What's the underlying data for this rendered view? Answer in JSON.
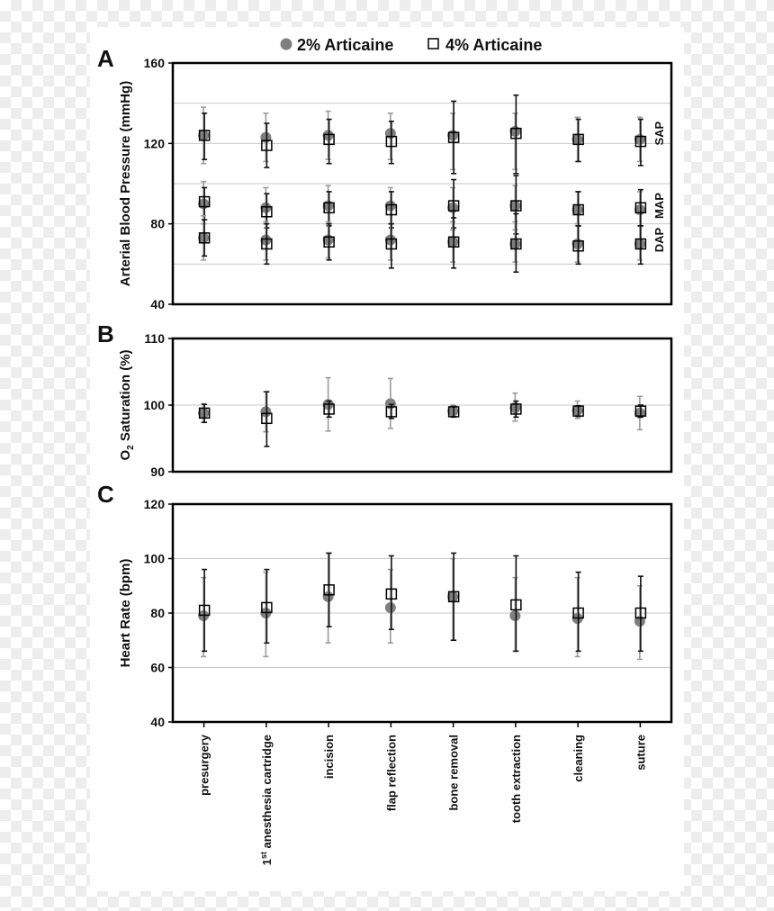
{
  "legend": {
    "series_1": "2% Articaine",
    "series_2": "4% Articaine"
  },
  "colors": {
    "series_1_marker": "#7f7f7f",
    "series_2_marker": "#ffffff",
    "series_1_error": "#9b9b9b",
    "series_2_error": "#111111",
    "gridline": "#c8c8c8",
    "frame": "#000000"
  },
  "chart_data": [
    {
      "panel": "A",
      "type": "scatter",
      "error_bars": true,
      "ylabel": "Arterial Blood Pressure (mmHg)",
      "ylim": [
        40,
        160
      ],
      "yticks": [
        40,
        80,
        120,
        160
      ],
      "gridlines": [
        60,
        80,
        100,
        120,
        140
      ],
      "categories": [
        "presurgery",
        "1st anesthesia cartridge",
        "incision",
        "flap reflection",
        "bone removal",
        "tooth extraction",
        "cleaning",
        "suture"
      ],
      "right_labels": [
        {
          "text": "SAP",
          "y": 125
        },
        {
          "text": "MAP",
          "y": 89
        },
        {
          "text": "DAP",
          "y": 72
        }
      ],
      "series": [
        {
          "name": "2% Articaine",
          "subseries": "SAP",
          "values": [
            124,
            123,
            124,
            125,
            124,
            126,
            122,
            122
          ],
          "err_low": [
            110,
            111,
            112,
            112,
            107,
            107,
            111,
            111
          ],
          "err_high": [
            138,
            135,
            136,
            135,
            135,
            135,
            133,
            133
          ]
        },
        {
          "name": "4% Articaine",
          "subseries": "SAP",
          "values": [
            124,
            119,
            122,
            121,
            123,
            125,
            122,
            121
          ],
          "err_low": [
            112,
            108,
            110,
            110,
            105,
            105,
            111,
            109
          ],
          "err_high": [
            135,
            130,
            132,
            131,
            141,
            144,
            132,
            132
          ]
        },
        {
          "name": "2% Articaine",
          "subseries": "MAP",
          "values": [
            90,
            88,
            89,
            89,
            88,
            89,
            87,
            87
          ],
          "err_low": [
            80,
            80,
            80,
            80,
            77,
            77,
            80,
            79
          ],
          "err_high": [
            101,
            98,
            99,
            98,
            98,
            99,
            96,
            96
          ]
        },
        {
          "name": "4% Articaine",
          "subseries": "MAP",
          "values": [
            91,
            86,
            88,
            87,
            89,
            89,
            87,
            88
          ],
          "err_low": [
            82,
            78,
            79,
            78,
            78,
            75,
            79,
            79
          ],
          "err_high": [
            98,
            95,
            96,
            96,
            102,
            104,
            96,
            97
          ]
        },
        {
          "name": "2% Articaine",
          "subseries": "DAP",
          "values": [
            73,
            72,
            72,
            72,
            71,
            70,
            70,
            70
          ],
          "err_low": [
            62,
            62,
            63,
            62,
            61,
            61,
            61,
            62
          ],
          "err_high": [
            84,
            81,
            81,
            80,
            81,
            81,
            79,
            79
          ]
        },
        {
          "name": "4% Articaine",
          "subseries": "DAP",
          "values": [
            73,
            70,
            71,
            70,
            71,
            70,
            69,
            70
          ],
          "err_low": [
            64,
            60,
            62,
            58,
            58,
            56,
            60,
            60
          ],
          "err_high": [
            82,
            80,
            80,
            80,
            83,
            85,
            79,
            79
          ]
        }
      ]
    },
    {
      "panel": "B",
      "type": "scatter",
      "error_bars": true,
      "ylabel": "O2 Saturation (%)",
      "ylim": [
        90,
        110
      ],
      "yticks": [
        90,
        100,
        110
      ],
      "gridlines": [
        100
      ],
      "categories": [
        "presurgery",
        "1st anesthesia cartridge",
        "incision",
        "flap reflection",
        "bone removal",
        "tooth extraction",
        "cleaning",
        "suture"
      ],
      "series": [
        {
          "name": "2% Articaine",
          "values": [
            98.8,
            99.0,
            100.1,
            100.2,
            99.1,
            99.6,
            99.2,
            98.8
          ],
          "err_low": [
            97.4,
            96.0,
            96.1,
            96.5,
            98.3,
            97.6,
            98.0,
            96.3
          ],
          "err_high": [
            100.2,
            102.0,
            104.1,
            104.0,
            100.0,
            101.8,
            100.6,
            101.3
          ]
        },
        {
          "name": "4% Articaine",
          "values": [
            98.8,
            98.0,
            99.4,
            99.0,
            99.0,
            99.4,
            99.1,
            99.1
          ],
          "err_low": [
            97.4,
            93.8,
            98.2,
            98.0,
            98.2,
            98.2,
            98.3,
            98.2
          ],
          "err_high": [
            100.1,
            102.0,
            100.6,
            100.1,
            99.8,
            100.6,
            99.9,
            100.0
          ]
        }
      ]
    },
    {
      "panel": "C",
      "type": "scatter",
      "error_bars": true,
      "ylabel": "Heart Rate (bpm)",
      "ylim": [
        40,
        120
      ],
      "yticks": [
        40,
        60,
        80,
        100,
        120
      ],
      "gridlines": [
        60,
        80,
        100
      ],
      "categories": [
        "presurgery",
        "1st anesthesia cartridge",
        "incision",
        "flap reflection",
        "bone removal",
        "tooth extraction",
        "cleaning",
        "suture"
      ],
      "series": [
        {
          "name": "2% Articaine",
          "values": [
            79,
            80,
            86,
            82,
            86,
            79,
            78,
            77
          ],
          "err_low": [
            64,
            64,
            69,
            69,
            70,
            66,
            64,
            63
          ],
          "err_high": [
            93,
            95,
            102,
            96,
            100,
            93,
            93,
            90
          ]
        },
        {
          "name": "4% Articaine",
          "values": [
            81,
            82,
            88.5,
            87,
            86,
            83,
            80,
            80
          ],
          "err_low": [
            66,
            69,
            75,
            74,
            70,
            66,
            66,
            66
          ],
          "err_high": [
            96,
            96,
            102,
            101,
            102,
            101,
            95,
            93.5
          ]
        }
      ]
    }
  ]
}
